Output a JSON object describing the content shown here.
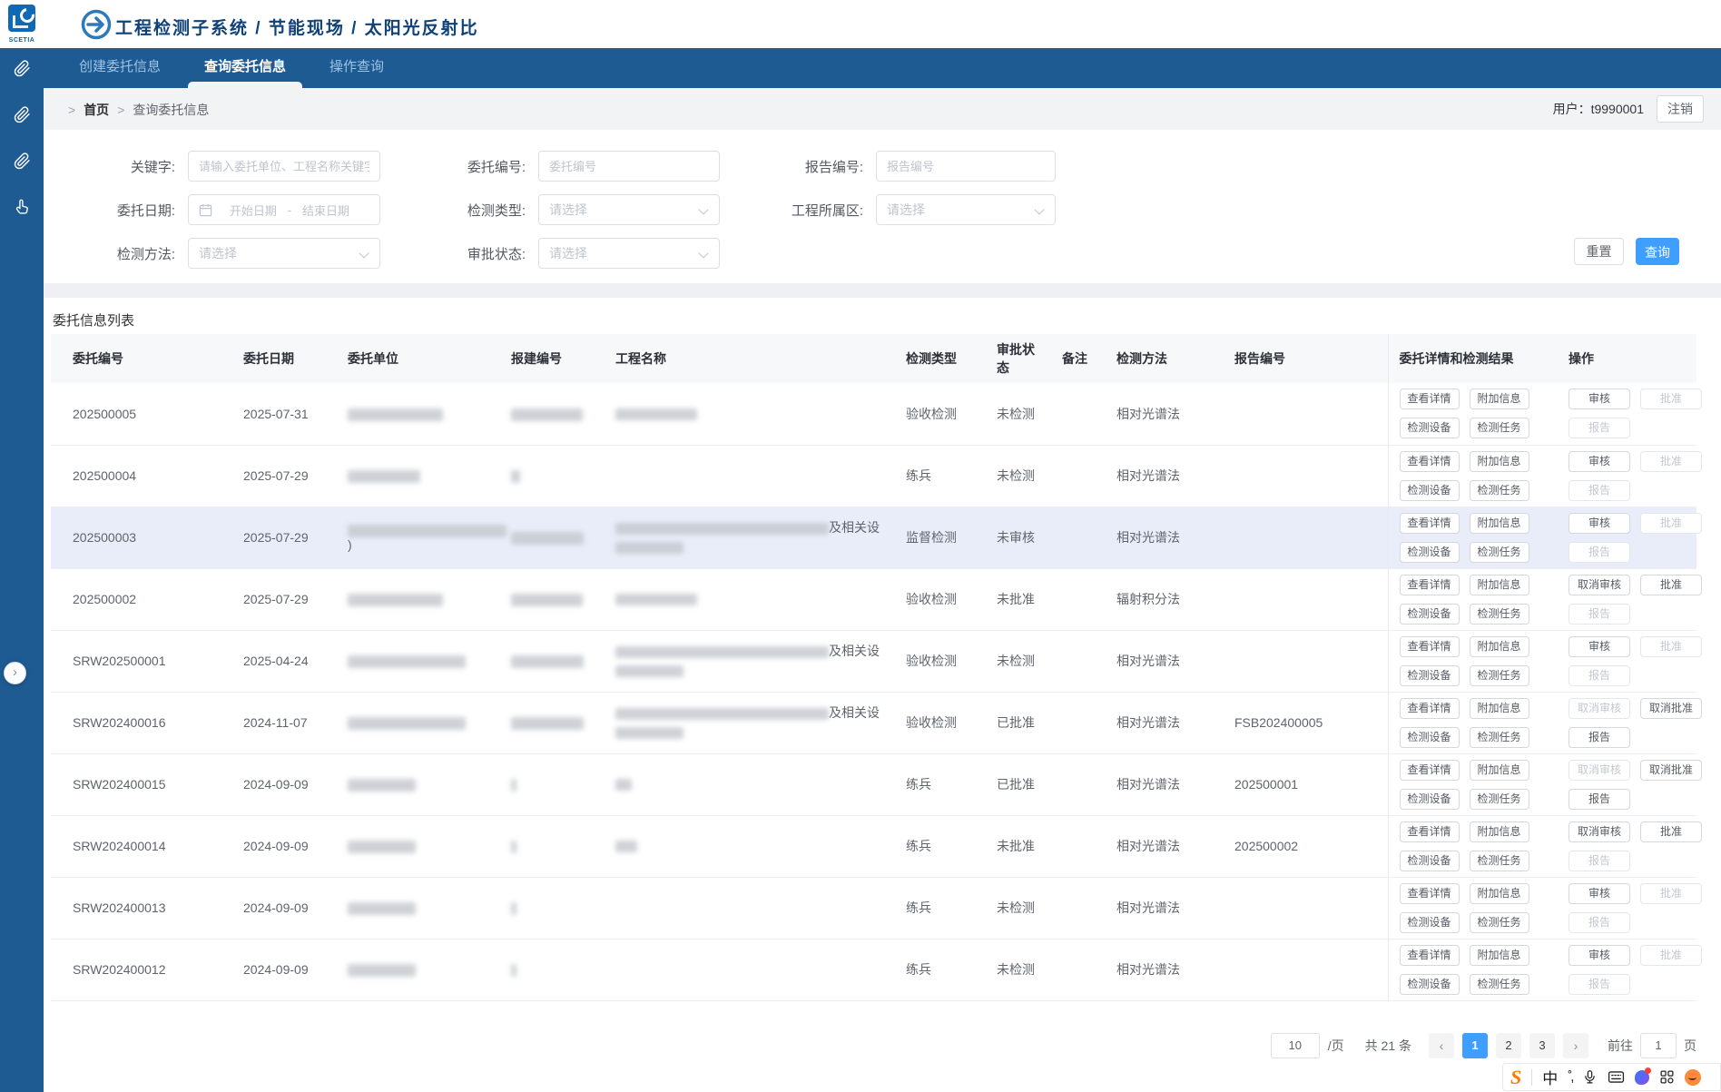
{
  "header": {
    "logo_text": "SCETIA",
    "title": "工程检测子系统 / 节能现场 / 太阳光反射比"
  },
  "tabs": [
    {
      "label": "创建委托信息",
      "active": false
    },
    {
      "label": "查询委托信息",
      "active": true
    },
    {
      "label": "操作查询",
      "active": false
    }
  ],
  "breadcrumb": {
    "sep": ">",
    "home": "首页",
    "current": "查询委托信息"
  },
  "user": {
    "label": "用户：t9990001",
    "logout": "注销"
  },
  "filters": {
    "keyword": {
      "label": "关键字:",
      "placeholder": "请输入委托单位、工程名称关键字查询"
    },
    "commission_no": {
      "label": "委托编号:",
      "placeholder": "委托编号"
    },
    "report_no": {
      "label": "报告编号:",
      "placeholder": "报告编号"
    },
    "date": {
      "label": "委托日期:",
      "start_placeholder": "开始日期",
      "separator": "-",
      "end_placeholder": "结束日期"
    },
    "test_type": {
      "label": "检测类型:",
      "placeholder": "请选择"
    },
    "district": {
      "label": "工程所属区:",
      "placeholder": "请选择"
    },
    "method": {
      "label": "检测方法:",
      "placeholder": "请选择"
    },
    "approval": {
      "label": "审批状态:",
      "placeholder": "请选择"
    },
    "reset_label": "重置",
    "search_label": "查询"
  },
  "table": {
    "title": "委托信息列表",
    "columns": [
      "委托编号",
      "委托日期",
      "委托单位",
      "报建编号",
      "工程名称",
      "检测类型",
      "审批状态",
      "备注",
      "检测方法",
      "报告编号",
      "委托详情和检测结果",
      "操作"
    ],
    "detail_buttons": [
      "查看详情",
      "附加信息",
      "检测设备",
      "检测任务"
    ],
    "report_button": "报告",
    "rows": [
      {
        "code": "202500005",
        "date": "2025-07-31",
        "unit_blur": 105,
        "unit_suffix": "",
        "permit_blur": 79,
        "proj1_blur": 90,
        "proj_suffix": "",
        "proj2_blur": 0,
        "type": "验收检测",
        "status": "未检测",
        "remark": "",
        "method": "相对光谱法",
        "report": "",
        "op1": "审核",
        "op1_on": true,
        "op2": "批准",
        "op2_on": false,
        "rep_on": false,
        "hl": false
      },
      {
        "code": "202500004",
        "date": "2025-07-29",
        "unit_blur": 80,
        "unit_suffix": "",
        "permit_blur": 10,
        "proj1_blur": 0,
        "proj_suffix": "",
        "proj2_blur": 0,
        "type": "练兵",
        "status": "未检测",
        "remark": "",
        "method": "相对光谱法",
        "report": "",
        "op1": "审核",
        "op1_on": true,
        "op2": "批准",
        "op2_on": false,
        "rep_on": false,
        "hl": false
      },
      {
        "code": "202500003",
        "date": "2025-07-29",
        "unit_blur": 175,
        "unit_suffix": ")",
        "permit_blur": 80,
        "proj1_blur": 235,
        "proj_suffix": "及相关设",
        "proj2_blur": 75,
        "type": "监督检测",
        "status": "未审核",
        "remark": "",
        "method": "相对光谱法",
        "report": "",
        "op1": "审核",
        "op1_on": true,
        "op2": "批准",
        "op2_on": false,
        "rep_on": false,
        "hl": true
      },
      {
        "code": "202500002",
        "date": "2025-07-29",
        "unit_blur": 105,
        "unit_suffix": "",
        "permit_blur": 79,
        "proj1_blur": 90,
        "proj_suffix": "",
        "proj2_blur": 0,
        "type": "验收检测",
        "status": "未批准",
        "remark": "",
        "method": "辐射积分法",
        "report": "",
        "op1": "取消审核",
        "op1_on": true,
        "op2": "批准",
        "op2_on": true,
        "rep_on": false,
        "hl": false
      },
      {
        "code": "SRW202500001",
        "date": "2025-04-24",
        "unit_blur": 130,
        "unit_suffix": "",
        "permit_blur": 80,
        "proj1_blur": 235,
        "proj_suffix": "及相关设",
        "proj2_blur": 75,
        "type": "验收检测",
        "status": "未检测",
        "remark": "",
        "method": "相对光谱法",
        "report": "",
        "op1": "审核",
        "op1_on": true,
        "op2": "批准",
        "op2_on": false,
        "rep_on": false,
        "hl": false
      },
      {
        "code": "SRW202400016",
        "date": "2024-11-07",
        "unit_blur": 130,
        "unit_suffix": "",
        "permit_blur": 80,
        "proj1_blur": 235,
        "proj_suffix": "及相关设",
        "proj2_blur": 75,
        "type": "验收检测",
        "status": "已批准",
        "remark": "",
        "method": "相对光谱法",
        "report": "FSB202400005",
        "op1": "取消审核",
        "op1_on": false,
        "op2": "取消批准",
        "op2_on": true,
        "rep_on": true,
        "hl": false
      },
      {
        "code": "SRW202400015",
        "date": "2024-09-09",
        "unit_blur": 75,
        "unit_suffix": "",
        "permit_blur": 6,
        "proj1_blur": 18,
        "proj_suffix": "",
        "proj2_blur": 0,
        "type": "练兵",
        "status": "已批准",
        "remark": "",
        "method": "相对光谱法",
        "report": "202500001",
        "op1": "取消审核",
        "op1_on": false,
        "op2": "取消批准",
        "op2_on": true,
        "rep_on": true,
        "hl": false
      },
      {
        "code": "SRW202400014",
        "date": "2024-09-09",
        "unit_blur": 75,
        "unit_suffix": "",
        "permit_blur": 6,
        "proj1_blur": 24,
        "proj_suffix": "",
        "proj2_blur": 0,
        "type": "练兵",
        "status": "未批准",
        "remark": "",
        "method": "相对光谱法",
        "report": "202500002",
        "op1": "取消审核",
        "op1_on": true,
        "op2": "批准",
        "op2_on": true,
        "rep_on": false,
        "hl": false
      },
      {
        "code": "SRW202400013",
        "date": "2024-09-09",
        "unit_blur": 75,
        "unit_suffix": "",
        "permit_blur": 6,
        "proj1_blur": 0,
        "proj_suffix": "",
        "proj2_blur": 0,
        "type": "练兵",
        "status": "未检测",
        "remark": "",
        "method": "相对光谱法",
        "report": "",
        "op1": "审核",
        "op1_on": true,
        "op2": "批准",
        "op2_on": false,
        "rep_on": false,
        "hl": false
      },
      {
        "code": "SRW202400012",
        "date": "2024-09-09",
        "unit_blur": 75,
        "unit_suffix": "",
        "permit_blur": 6,
        "proj1_blur": 0,
        "proj_suffix": "",
        "proj2_blur": 0,
        "type": "练兵",
        "status": "未检测",
        "remark": "",
        "method": "相对光谱法",
        "report": "",
        "op1": "审核",
        "op1_on": true,
        "op2": "批准",
        "op2_on": false,
        "rep_on": false,
        "hl": false
      }
    ]
  },
  "pagination": {
    "page_size": "10",
    "page_size_suffix": "/页",
    "total": "共 21 条",
    "pages": [
      "1",
      "2",
      "3"
    ],
    "active_page": "1",
    "prev": "‹",
    "next": "›",
    "goto_label": "前往",
    "goto_value": "1",
    "goto_suffix": "页"
  },
  "ime": {
    "s": "S",
    "mode": "中",
    "punct": "˚,"
  },
  "colors": {
    "brand_blue": "#1e5b93",
    "accent": "#409eff",
    "title_navy": "#0f4278",
    "highlight_row": "#e9edf9"
  }
}
